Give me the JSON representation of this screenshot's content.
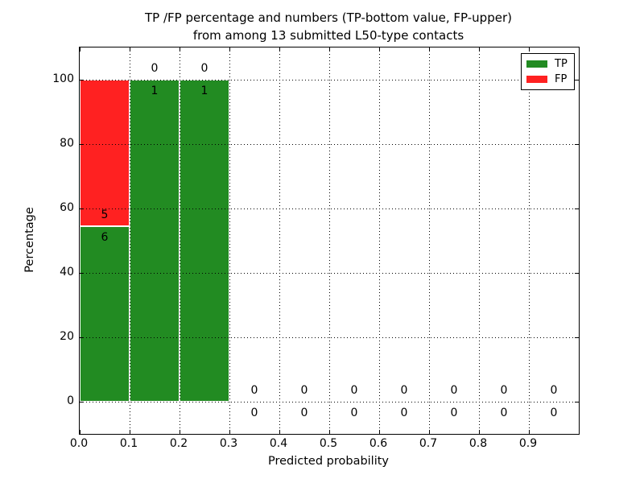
{
  "figure": {
    "background": "#ffffff",
    "frame_color": "#000000"
  },
  "chart_data": {
    "type": "bar",
    "stacked": true,
    "title_lines": [
      "TP /FP percentage and numbers (TP-bottom value, FP-upper)",
      "from among 13 submitted L50-type contacts"
    ],
    "xlabel": "Predicted probability",
    "ylabel": "Percentage",
    "xlim": [
      0.0,
      1.0
    ],
    "ylim": [
      -10,
      110
    ],
    "xtick_labels": [
      "0.0",
      "0.1",
      "0.2",
      "0.3",
      "0.4",
      "0.5",
      "0.6",
      "0.7",
      "0.8",
      "0.9"
    ],
    "ytick_labels": [
      "0",
      "20",
      "40",
      "60",
      "80",
      "100"
    ],
    "grid": {
      "visible": true,
      "style": "dotted",
      "color": "#000000"
    },
    "submitted_total": 13,
    "colors": {
      "tp": "#228b22",
      "fp": "#ff2121"
    },
    "legend": {
      "position": "upper-right",
      "entries": [
        {
          "label": "TP",
          "color": "#228b22"
        },
        {
          "label": "FP",
          "color": "#ff2121"
        }
      ]
    },
    "bins": [
      {
        "x_start": 0.0,
        "x_end": 0.1,
        "tp_count": 6,
        "fp_count": 5,
        "tp_pct": 54.545,
        "fp_pct": 45.455
      },
      {
        "x_start": 0.1,
        "x_end": 0.2,
        "tp_count": 1,
        "fp_count": 0,
        "tp_pct": 100,
        "fp_pct": 0
      },
      {
        "x_start": 0.2,
        "x_end": 0.3,
        "tp_count": 1,
        "fp_count": 0,
        "tp_pct": 100,
        "fp_pct": 0
      },
      {
        "x_start": 0.3,
        "x_end": 0.4,
        "tp_count": 0,
        "fp_count": 0,
        "tp_pct": 0,
        "fp_pct": 0
      },
      {
        "x_start": 0.4,
        "x_end": 0.5,
        "tp_count": 0,
        "fp_count": 0,
        "tp_pct": 0,
        "fp_pct": 0
      },
      {
        "x_start": 0.5,
        "x_end": 0.6,
        "tp_count": 0,
        "fp_count": 0,
        "tp_pct": 0,
        "fp_pct": 0
      },
      {
        "x_start": 0.6,
        "x_end": 0.7,
        "tp_count": 0,
        "fp_count": 0,
        "tp_pct": 0,
        "fp_pct": 0
      },
      {
        "x_start": 0.7,
        "x_end": 0.8,
        "tp_count": 0,
        "fp_count": 0,
        "tp_pct": 0,
        "fp_pct": 0
      },
      {
        "x_start": 0.8,
        "x_end": 0.9,
        "tp_count": 0,
        "fp_count": 0,
        "tp_pct": 0,
        "fp_pct": 0
      },
      {
        "x_start": 0.9,
        "x_end": 1.0,
        "tp_count": 0,
        "fp_count": 0,
        "tp_pct": 0,
        "fp_pct": 0
      }
    ]
  }
}
